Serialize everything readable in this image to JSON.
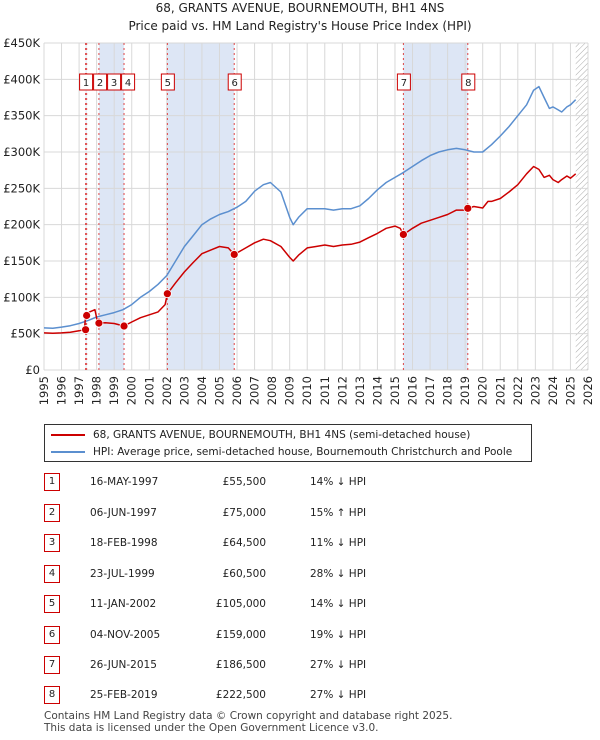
{
  "chart_data": {
    "type": "line",
    "title": "68, GRANTS AVENUE, BOURNEMOUTH, BH1 4NS",
    "subtitle": "Price paid vs. HM Land Registry's House Price Index (HPI)",
    "xlabel": "",
    "ylabel": "",
    "xlim": [
      1995,
      2026
    ],
    "ylim": [
      0,
      450000
    ],
    "x_ticks": [
      1995,
      1996,
      1997,
      1998,
      1999,
      2000,
      2001,
      2002,
      2003,
      2004,
      2005,
      2006,
      2007,
      2008,
      2009,
      2010,
      2011,
      2012,
      2013,
      2014,
      2015,
      2016,
      2017,
      2018,
      2019,
      2020,
      2021,
      2022,
      2023,
      2024,
      2025,
      2026
    ],
    "y_ticks": [
      {
        "value": 0,
        "label": "£0"
      },
      {
        "value": 50000,
        "label": "£50K"
      },
      {
        "value": 100000,
        "label": "£100K"
      },
      {
        "value": 150000,
        "label": "£150K"
      },
      {
        "value": 200000,
        "label": "£200K"
      },
      {
        "value": 250000,
        "label": "£250K"
      },
      {
        "value": 300000,
        "label": "£300K"
      },
      {
        "value": 350000,
        "label": "£350K"
      },
      {
        "value": 400000,
        "label": "£400K"
      },
      {
        "value": 450000,
        "label": "£450K"
      }
    ],
    "grid": true,
    "series": [
      {
        "name": "68, GRANTS AVENUE, BOURNEMOUTH, BH1 4NS (semi-detached house)",
        "color": "#cc0000",
        "x": [
          1995.0,
          1995.5,
          1996.0,
          1996.5,
          1997.0,
          1997.3,
          1997.37,
          1997.43,
          1997.6,
          1997.9,
          1998.05,
          1998.13,
          1998.5,
          1999.0,
          1999.3,
          1999.56,
          2000.0,
          2000.5,
          2001.0,
          2001.5,
          2001.9,
          2002.03,
          2002.5,
          2003.0,
          2003.5,
          2004.0,
          2004.5,
          2005.0,
          2005.5,
          2005.84,
          2006.5,
          2007.0,
          2007.5,
          2007.9,
          2008.5,
          2009.0,
          2009.2,
          2009.5,
          2010.0,
          2010.5,
          2011.0,
          2011.5,
          2012.0,
          2012.5,
          2013.0,
          2013.5,
          2014.0,
          2014.5,
          2015.0,
          2015.3,
          2015.48,
          2015.7,
          2016.0,
          2016.5,
          2017.0,
          2017.5,
          2018.0,
          2018.5,
          2019.0,
          2019.15,
          2019.5,
          2020.0,
          2020.3,
          2020.5,
          2021.0,
          2021.5,
          2022.0,
          2022.5,
          2022.9,
          2023.2,
          2023.5,
          2023.8,
          2024.0,
          2024.3,
          2024.5,
          2024.8,
          2025.0,
          2025.3
        ],
        "values": [
          51000,
          50500,
          51000,
          52000,
          54000,
          55500,
          75000,
          76000,
          80000,
          83000,
          66000,
          64500,
          65000,
          64000,
          62000,
          60500,
          66000,
          72000,
          76000,
          80000,
          90000,
          105000,
          120000,
          135000,
          148000,
          160000,
          165000,
          170000,
          168000,
          159000,
          168000,
          175000,
          180000,
          178000,
          170000,
          155000,
          150000,
          158000,
          168000,
          170000,
          172000,
          170000,
          172000,
          173000,
          176000,
          182000,
          188000,
          195000,
          198000,
          195000,
          186500,
          190000,
          195000,
          202000,
          206000,
          210000,
          214000,
          220000,
          220000,
          222500,
          225000,
          223000,
          232000,
          232000,
          236000,
          245000,
          255000,
          270000,
          280000,
          276000,
          265000,
          268000,
          262000,
          258000,
          262000,
          267000,
          264000,
          270000
        ]
      },
      {
        "name": "HPI: Average price, semi-detached house, Bournemouth Christchurch and Poole",
        "color": "#5b8fcf",
        "x": [
          1995.0,
          1995.5,
          1996.0,
          1996.5,
          1997.0,
          1997.5,
          1998.0,
          1998.5,
          1999.0,
          1999.5,
          2000.0,
          2000.5,
          2001.0,
          2001.5,
          2002.0,
          2002.5,
          2003.0,
          2003.5,
          2004.0,
          2004.5,
          2005.0,
          2005.5,
          2006.0,
          2006.5,
          2007.0,
          2007.5,
          2007.9,
          2008.5,
          2009.0,
          2009.2,
          2009.5,
          2010.0,
          2010.5,
          2011.0,
          2011.5,
          2012.0,
          2012.5,
          2013.0,
          2013.5,
          2014.0,
          2014.5,
          2015.0,
          2015.5,
          2016.0,
          2016.5,
          2017.0,
          2017.5,
          2018.0,
          2018.5,
          2019.0,
          2019.5,
          2020.0,
          2020.5,
          2021.0,
          2021.5,
          2022.0,
          2022.5,
          2022.9,
          2023.2,
          2023.5,
          2023.8,
          2024.0,
          2024.3,
          2024.5,
          2024.8,
          2025.0,
          2025.3
        ],
        "values": [
          58000,
          57500,
          59000,
          61000,
          64000,
          68000,
          73000,
          76000,
          79000,
          83000,
          90000,
          100000,
          108000,
          118000,
          130000,
          150000,
          170000,
          185000,
          200000,
          208000,
          214000,
          218000,
          224000,
          232000,
          246000,
          255000,
          258000,
          245000,
          210000,
          200000,
          210000,
          222000,
          222000,
          222000,
          220000,
          222000,
          222000,
          226000,
          236000,
          248000,
          258000,
          265000,
          272000,
          280000,
          288000,
          295000,
          300000,
          303000,
          305000,
          303000,
          300000,
          300000,
          310000,
          322000,
          335000,
          350000,
          365000,
          385000,
          390000,
          375000,
          360000,
          362000,
          358000,
          355000,
          362000,
          365000,
          372000
        ]
      }
    ],
    "transactions": [
      {
        "num": "1",
        "x": 1997.37,
        "price": 55500,
        "date": "16-MAY-1997",
        "price_label": "£55,500",
        "hpi": "14% ↓ HPI"
      },
      {
        "num": "2",
        "x": 1997.43,
        "price": 75000,
        "date": "06-JUN-1997",
        "price_label": "£75,000",
        "hpi": "15% ↑ HPI"
      },
      {
        "num": "3",
        "x": 1998.13,
        "price": 64500,
        "date": "18-FEB-1998",
        "price_label": "£64,500",
        "hpi": "11% ↓ HPI"
      },
      {
        "num": "4",
        "x": 1999.56,
        "price": 60500,
        "date": "23-JUL-1999",
        "price_label": "£60,500",
        "hpi": "28% ↓ HPI"
      },
      {
        "num": "5",
        "x": 2002.03,
        "price": 105000,
        "date": "11-JAN-2002",
        "price_label": "£105,000",
        "hpi": "14% ↓ HPI"
      },
      {
        "num": "6",
        "x": 2005.84,
        "price": 159000,
        "date": "04-NOV-2005",
        "price_label": "£159,000",
        "hpi": "19% ↓ HPI"
      },
      {
        "num": "7",
        "x": 2015.48,
        "price": 186500,
        "date": "26-JUN-2015",
        "price_label": "£186,500",
        "hpi": "27% ↓ HPI"
      },
      {
        "num": "8",
        "x": 2019.15,
        "price": 222500,
        "date": "25-FEB-2019",
        "price_label": "£222,500",
        "hpi": "27% ↓ HPI"
      }
    ],
    "shaded_spans": [
      [
        1997.37,
        1997.43
      ],
      [
        1998.13,
        1999.56
      ],
      [
        2002.03,
        2005.84
      ],
      [
        2015.48,
        2019.15
      ]
    ],
    "future_hatch_from": 2025.3
  },
  "colors": {
    "property": "#cc0000",
    "hpi": "#5b8fcf",
    "shade": "#dde6f5"
  },
  "legend": {
    "property_label": "68, GRANTS AVENUE, BOURNEMOUTH, BH1 4NS (semi-detached house)",
    "hpi_label": "HPI: Average price, semi-detached house, Bournemouth Christchurch and Poole"
  },
  "footer": {
    "line1": "Contains HM Land Registry data © Crown copyright and database right 2025.",
    "line2": "This data is licensed under the Open Government Licence v3.0."
  }
}
